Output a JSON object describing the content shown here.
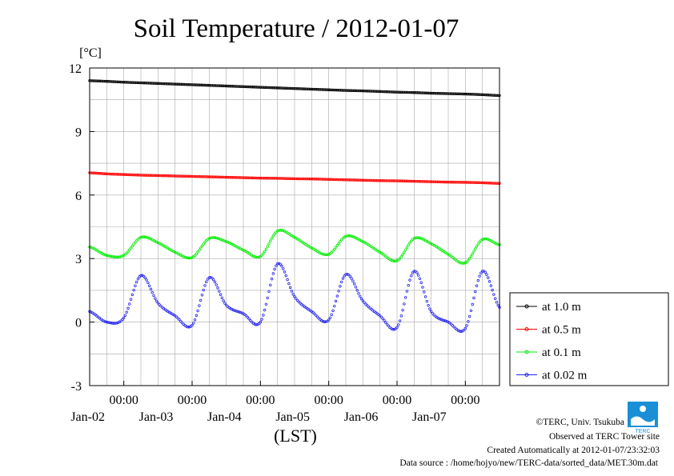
{
  "chart_data": {
    "type": "scatter",
    "title": "Soil Temperature / 2012-01-07",
    "ylabel": "[°C]",
    "xlabel": "(LST)",
    "ylim": [
      -3,
      12
    ],
    "yticks": [
      "12",
      "9",
      "6",
      "3",
      "0",
      "-3"
    ],
    "xlim": [
      "2012-01-01T12:00",
      "2012-01-07T12:00"
    ],
    "xticks": [
      {
        "time": "00:00",
        "date": "Jan-02"
      },
      {
        "time": "00:00",
        "date": "Jan-03"
      },
      {
        "time": "00:00",
        "date": "Jan-04"
      },
      {
        "time": "00:00",
        "date": "Jan-05"
      },
      {
        "time": "00:00",
        "date": "Jan-06"
      },
      {
        "time": "00:00",
        "date": "Jan-07"
      }
    ],
    "grid": true,
    "legend_position": "bottom-right outside",
    "x": [
      "2012-01-01T12:00",
      "2012-01-01T18:00",
      "2012-01-02T00:00",
      "2012-01-02T06:00",
      "2012-01-02T12:00",
      "2012-01-02T18:00",
      "2012-01-03T00:00",
      "2012-01-03T06:00",
      "2012-01-03T12:00",
      "2012-01-03T18:00",
      "2012-01-04T00:00",
      "2012-01-04T06:00",
      "2012-01-04T12:00",
      "2012-01-04T18:00",
      "2012-01-05T00:00",
      "2012-01-05T06:00",
      "2012-01-05T12:00",
      "2012-01-05T18:00",
      "2012-01-06T00:00",
      "2012-01-06T06:00",
      "2012-01-06T12:00",
      "2012-01-06T18:00",
      "2012-01-07T00:00",
      "2012-01-07T06:00",
      "2012-01-07T12:00"
    ],
    "series": [
      {
        "name": "at 1.0 m",
        "color": "#000000",
        "values": [
          11.4,
          11.37,
          11.33,
          11.3,
          11.27,
          11.24,
          11.21,
          11.18,
          11.15,
          11.12,
          11.09,
          11.06,
          11.03,
          11.0,
          10.97,
          10.94,
          10.92,
          10.89,
          10.86,
          10.84,
          10.81,
          10.79,
          10.77,
          10.74,
          10.7
        ]
      },
      {
        "name": "at 0.5 m",
        "color": "#ff0000",
        "values": [
          7.05,
          7.0,
          6.97,
          6.94,
          6.92,
          6.9,
          6.88,
          6.86,
          6.84,
          6.82,
          6.8,
          6.79,
          6.77,
          6.76,
          6.74,
          6.72,
          6.7,
          6.68,
          6.67,
          6.65,
          6.63,
          6.61,
          6.6,
          6.58,
          6.55
        ]
      },
      {
        "name": "at 0.1 m",
        "color": "#00ee00",
        "values": [
          3.55,
          3.15,
          3.15,
          4.0,
          3.75,
          3.3,
          3.05,
          3.95,
          3.8,
          3.4,
          3.1,
          4.3,
          4.0,
          3.5,
          3.2,
          4.05,
          3.8,
          3.3,
          2.9,
          3.95,
          3.7,
          3.2,
          2.8,
          3.9,
          3.65
        ]
      },
      {
        "name": "at 0.02 m",
        "color": "#2222ee",
        "values": [
          0.5,
          0.0,
          0.2,
          2.2,
          0.9,
          0.3,
          -0.15,
          2.1,
          0.8,
          0.4,
          0.0,
          2.75,
          1.2,
          0.5,
          0.1,
          2.25,
          1.0,
          0.3,
          -0.25,
          2.4,
          0.5,
          0.0,
          -0.3,
          2.4,
          0.7
        ]
      }
    ]
  },
  "credits": {
    "copyright": "©TERC, Univ. Tsukuba",
    "observed": "Observed at TERC Tower site",
    "created": "Created Automatically at 2012-01-07/23:32:03",
    "source": "Data source : /home/hojyo/new/TERC-data/sorted_data/MET.30m.dat",
    "logo_text": "TERC"
  }
}
